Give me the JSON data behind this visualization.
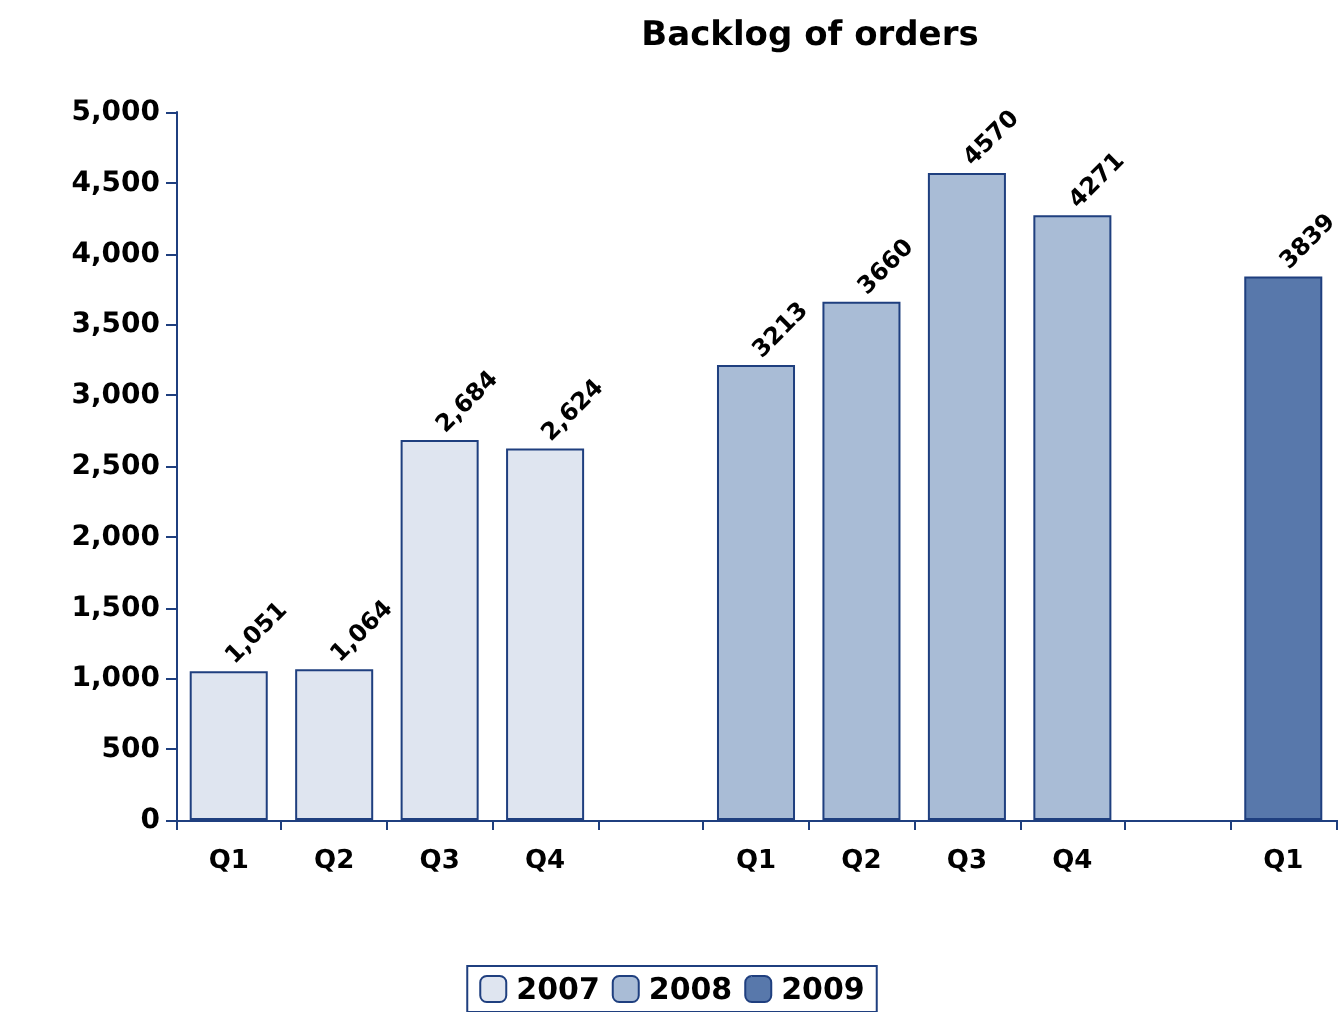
{
  "chart_data": {
    "type": "bar",
    "title": "Backlog of orders",
    "categories": [
      "Q1",
      "Q2",
      "Q3",
      "Q4",
      null,
      "Q1",
      "Q2",
      "Q3",
      "Q4",
      null,
      "Q1"
    ],
    "series": [
      {
        "name": "2007",
        "color": "#dfe5f0",
        "values": [
          1051,
          1064,
          2684,
          2624,
          null,
          null,
          null,
          null,
          null,
          null,
          null
        ],
        "value_labels": [
          "1,051",
          "1,064",
          "2,684",
          "2,624",
          null,
          null,
          null,
          null,
          null,
          null,
          null
        ]
      },
      {
        "name": "2008",
        "color": "#a9bcd6",
        "values": [
          null,
          null,
          null,
          null,
          null,
          3213,
          3660,
          4570,
          4271,
          null,
          null
        ],
        "value_labels": [
          null,
          null,
          null,
          null,
          null,
          "3213",
          "3660",
          "4570",
          "4271",
          null,
          null
        ]
      },
      {
        "name": "2009",
        "color": "#5878ab",
        "values": [
          null,
          null,
          null,
          null,
          null,
          null,
          null,
          null,
          null,
          null,
          3839
        ],
        "value_labels": [
          null,
          null,
          null,
          null,
          null,
          null,
          null,
          null,
          null,
          null,
          "3839"
        ]
      }
    ],
    "stacked": true,
    "ylim": [
      0,
      5000
    ],
    "yticks": [
      0,
      500,
      {
        "value": 1000,
        "label": "1,000"
      },
      {
        "value": 1500,
        "label": "1,500"
      },
      {
        "value": 2000,
        "label": "2,000"
      },
      {
        "value": 2500,
        "label": "2,500"
      },
      {
        "value": 3000,
        "label": "3,000"
      },
      {
        "value": 3500,
        "label": "3,500"
      },
      {
        "value": 4000,
        "label": "4,000"
      },
      {
        "value": 4500,
        "label": "4,500"
      },
      {
        "value": 5000,
        "label": "5,000"
      }
    ],
    "grid": false,
    "legend": "bottom"
  }
}
